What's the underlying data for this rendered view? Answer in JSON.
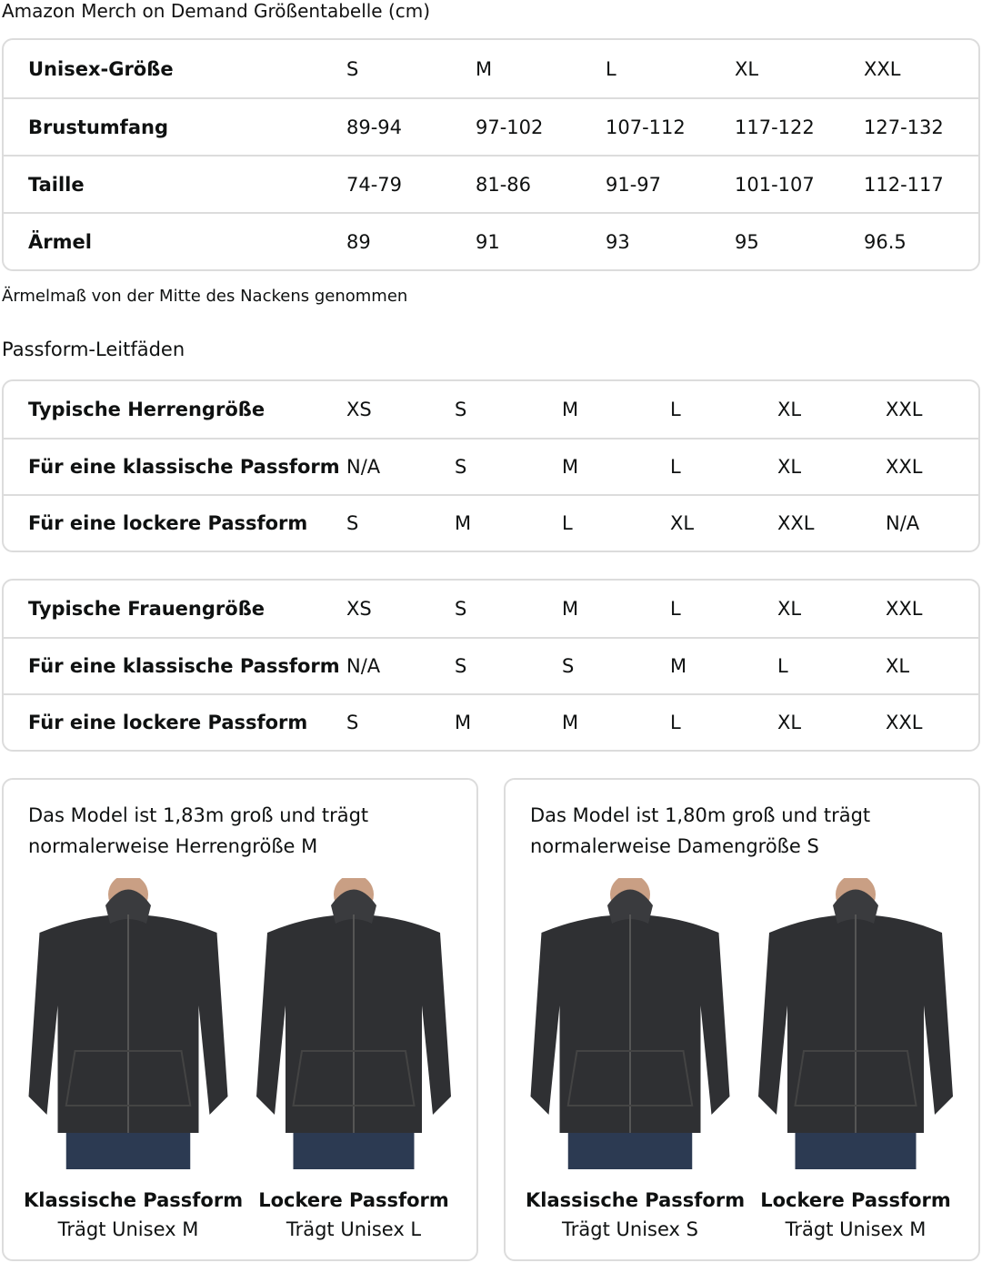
{
  "title": "Amazon Merch on Demand Größentabelle (cm)",
  "size_table": {
    "rows": [
      [
        "Unisex-Größe",
        "S",
        "M",
        "L",
        "XL",
        "XXL"
      ],
      [
        "Brustumfang",
        "89-94",
        "97-102",
        "107-112",
        "117-122",
        "127-132"
      ],
      [
        "Taille",
        "74-79",
        "81-86",
        "91-97",
        "101-107",
        "112-117"
      ],
      [
        "Ärmel",
        "89",
        "91",
        "93",
        "95",
        "96.5"
      ]
    ]
  },
  "sleeve_note": "Ärmelmaß von der Mitte des Nackens genommen",
  "fit_heading": "Passform-Leitfäden",
  "men_table": {
    "rows": [
      [
        "Typische Herrengröße",
        "XS",
        "S",
        "M",
        "L",
        "XL",
        "XXL"
      ],
      [
        "Für eine klassische Passform",
        "N/A",
        "S",
        "M",
        "L",
        "XL",
        "XXL"
      ],
      [
        "Für eine lockere Passform",
        "S",
        "M",
        "L",
        "XL",
        "XXL",
        "N/A"
      ]
    ]
  },
  "women_table": {
    "rows": [
      [
        "Typische Frauengröße",
        "XS",
        "S",
        "M",
        "L",
        "XL",
        "XXL"
      ],
      [
        "Für eine klassische Passform",
        "N/A",
        "S",
        "S",
        "M",
        "L",
        "XL"
      ],
      [
        "Für eine lockere Passform",
        "S",
        "M",
        "M",
        "L",
        "XL",
        "XXL"
      ]
    ]
  },
  "cards": [
    {
      "desc": "Das Model ist 1,83m groß und trägt normalerweise Herrengröße M",
      "figures": [
        {
          "title": "Klassische Passform",
          "sub": "Trägt Unisex M"
        },
        {
          "title": "Lockere Passform",
          "sub": "Trägt Unisex L"
        }
      ]
    },
    {
      "desc": "Das Model ist 1,80m groß und trägt normalerweise Damengröße S",
      "figures": [
        {
          "title": "Klassische Passform",
          "sub": "Trägt Unisex S"
        },
        {
          "title": "Lockere Passform",
          "sub": "Trägt Unisex M"
        }
      ]
    }
  ],
  "colors": {
    "border": "#dcdcdc",
    "hoodie": "#2f3033",
    "jeans": "#2c3a52"
  }
}
